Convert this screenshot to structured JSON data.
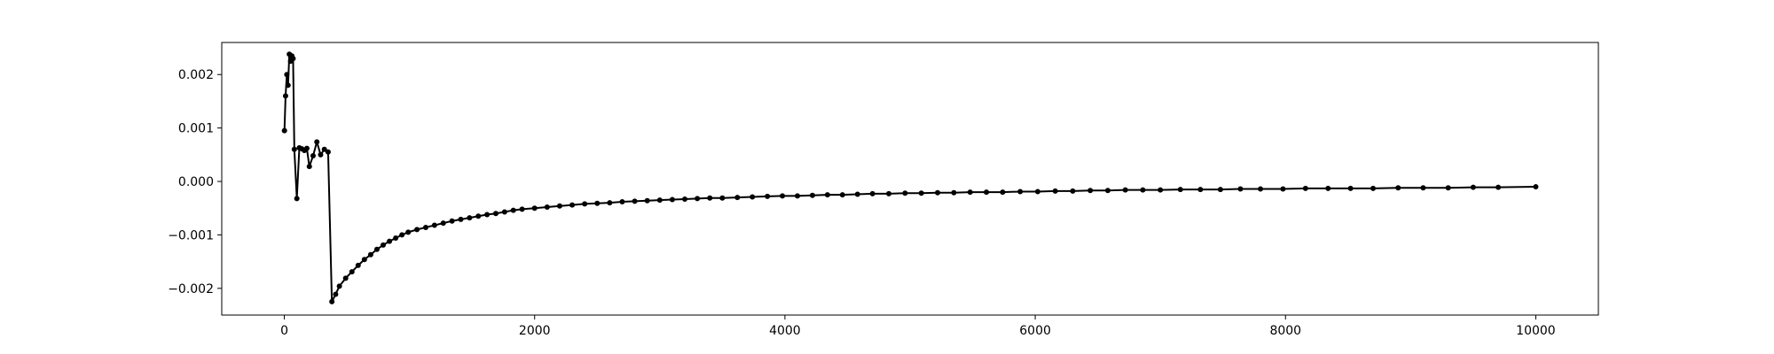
{
  "chart_data": {
    "type": "line",
    "title": "",
    "xlabel": "",
    "ylabel": "",
    "xlim": [
      -500,
      10500
    ],
    "ylim": [
      -0.0025,
      0.0026
    ],
    "xticks": [
      0,
      2000,
      4000,
      6000,
      8000,
      10000
    ],
    "xtick_labels": [
      "0",
      "2000",
      "4000",
      "6000",
      "8000",
      "10000"
    ],
    "yticks": [
      -0.002,
      -0.001,
      0.0,
      0.001,
      0.002
    ],
    "ytick_labels": [
      "−0.002",
      "−0.001",
      "0.000",
      "0.001",
      "0.002"
    ],
    "grid": false,
    "legend": "none",
    "series": [
      {
        "color": "#000000",
        "marker": "circle",
        "x": [
          1,
          10,
          20,
          30,
          40,
          50,
          60,
          70,
          80,
          100,
          120,
          140,
          160,
          180,
          200,
          230,
          260,
          290,
          320,
          350,
          380,
          410,
          440,
          490,
          540,
          590,
          640,
          690,
          740,
          790,
          840,
          890,
          940,
          990,
          1060,
          1130,
          1200,
          1270,
          1340,
          1410,
          1480,
          1550,
          1620,
          1690,
          1760,
          1830,
          1900,
          2000,
          2100,
          2200,
          2300,
          2400,
          2500,
          2600,
          2700,
          2800,
          2900,
          3000,
          3100,
          3200,
          3300,
          3400,
          3500,
          3620,
          3740,
          3860,
          3980,
          4100,
          4220,
          4340,
          4460,
          4580,
          4700,
          4830,
          4960,
          5090,
          5220,
          5350,
          5480,
          5610,
          5740,
          5880,
          6020,
          6160,
          6300,
          6440,
          6580,
          6720,
          6860,
          7000,
          7160,
          7320,
          7480,
          7640,
          7800,
          7980,
          8160,
          8340,
          8520,
          8700,
          8900,
          9100,
          9300,
          9500,
          9700,
          10000
        ],
        "y": [
          0.00095,
          0.0016,
          0.002,
          0.0018,
          0.00238,
          0.00225,
          0.00235,
          0.0023,
          0.0006,
          -0.00032,
          0.00063,
          0.00061,
          0.00058,
          0.00062,
          0.00028,
          0.00048,
          0.00074,
          0.0005,
          0.0006,
          0.00055,
          -0.00225,
          -0.00211,
          -0.00196,
          -0.00181,
          -0.00169,
          -0.00157,
          -0.00146,
          -0.00137,
          -0.00127,
          -0.00119,
          -0.00112,
          -0.00106,
          -0.001,
          -0.00095,
          -0.0009,
          -0.00086,
          -0.00082,
          -0.00078,
          -0.00074,
          -0.00071,
          -0.00068,
          -0.00065,
          -0.00062,
          -0.0006,
          -0.00057,
          -0.00054,
          -0.00052,
          -0.0005,
          -0.00048,
          -0.00046,
          -0.00044,
          -0.00042,
          -0.00041,
          -0.0004,
          -0.00038,
          -0.00037,
          -0.00036,
          -0.00035,
          -0.00034,
          -0.00033,
          -0.00032,
          -0.00031,
          -0.00031,
          -0.0003,
          -0.00029,
          -0.00028,
          -0.00027,
          -0.00027,
          -0.00026,
          -0.00025,
          -0.00025,
          -0.00024,
          -0.00023,
          -0.00023,
          -0.00022,
          -0.00022,
          -0.00021,
          -0.00021,
          -0.0002,
          -0.0002,
          -0.0002,
          -0.00019,
          -0.00019,
          -0.00018,
          -0.00018,
          -0.00017,
          -0.00017,
          -0.00016,
          -0.00016,
          -0.00016,
          -0.00015,
          -0.00015,
          -0.00015,
          -0.00014,
          -0.00014,
          -0.00014,
          -0.00013,
          -0.00013,
          -0.00013,
          -0.00013,
          -0.00012,
          -0.00012,
          -0.00012,
          -0.00011,
          -0.00011,
          -0.0001
        ]
      }
    ]
  }
}
